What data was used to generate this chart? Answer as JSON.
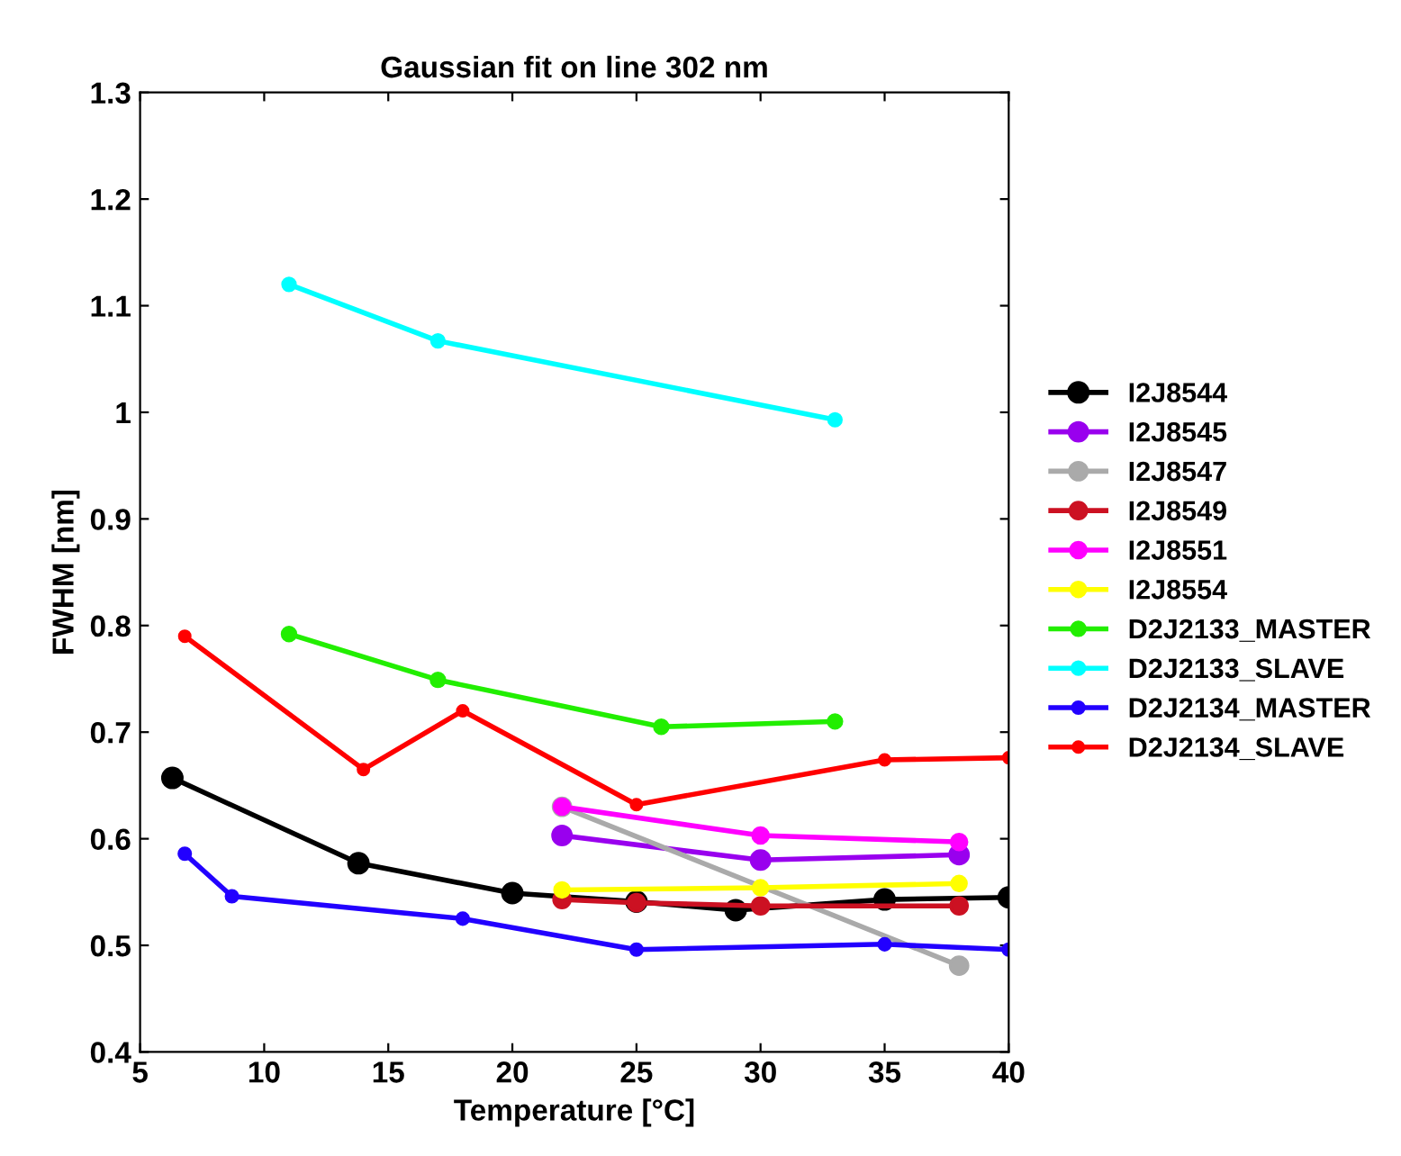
{
  "chart_data": {
    "type": "line",
    "title": "Gaussian fit on line 302 nm",
    "xlabel": "Temperature [°C]",
    "ylabel": "FWHM [nm]",
    "xlim": [
      5,
      40
    ],
    "xticks": [
      5,
      10,
      15,
      20,
      25,
      30,
      35,
      40
    ],
    "ylim": [
      0.4,
      1.3
    ],
    "yticks": [
      0.4,
      0.5,
      0.6,
      0.7,
      0.8,
      0.9,
      1,
      1.1,
      1.2,
      1.3
    ],
    "grid": false,
    "legend": "right",
    "marker": "circle",
    "line_style": "solid",
    "series": [
      {
        "name": "I2J8544",
        "color": "#000000",
        "x": [
          6.3,
          13.8,
          20,
          25,
          29,
          35,
          40
        ],
        "values": [
          0.657,
          0.577,
          0.549,
          0.541,
          0.533,
          0.543,
          0.545
        ]
      },
      {
        "name": "I2J8545",
        "color": "#9900ee",
        "x": [
          22,
          30,
          38
        ],
        "values": [
          0.603,
          0.58,
          0.585
        ]
      },
      {
        "name": "I2J8547",
        "color": "#aaaaaa",
        "x": [
          22,
          38
        ],
        "values": [
          0.63,
          0.481
        ]
      },
      {
        "name": "I2J8549",
        "color": "#cc1122",
        "x": [
          22,
          25,
          30,
          38
        ],
        "values": [
          0.543,
          0.54,
          0.537,
          0.537
        ]
      },
      {
        "name": "I2J8551",
        "color": "#ff00ff",
        "x": [
          22,
          30,
          38
        ],
        "values": [
          0.63,
          0.603,
          0.597
        ]
      },
      {
        "name": "I2J8554",
        "color": "#ffff00",
        "x": [
          22,
          30,
          38
        ],
        "values": [
          0.552,
          0.554,
          0.558
        ]
      },
      {
        "name": "D2J2133_MASTER",
        "color": "#22ee00",
        "x": [
          11,
          17,
          26,
          33
        ],
        "values": [
          0.792,
          0.749,
          0.705,
          0.71
        ]
      },
      {
        "name": "D2J2133_SLAVE",
        "color": "#00ffff",
        "x": [
          11,
          17,
          33
        ],
        "values": [
          1.12,
          1.067,
          0.993
        ]
      },
      {
        "name": "D2J2134_MASTER",
        "color": "#2200ff",
        "x": [
          6.8,
          8.7,
          18,
          25,
          35,
          40
        ],
        "values": [
          0.586,
          0.546,
          0.525,
          0.496,
          0.501,
          0.496
        ]
      },
      {
        "name": "D2J2134_SLAVE",
        "color": "#ff0000",
        "x": [
          6.8,
          14,
          18,
          25,
          35,
          40
        ],
        "values": [
          0.79,
          0.665,
          0.72,
          0.632,
          0.674,
          0.676
        ]
      }
    ]
  }
}
